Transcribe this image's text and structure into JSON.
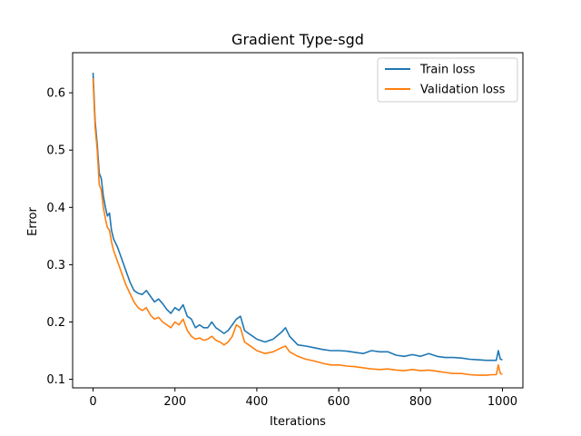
{
  "chart_data": {
    "type": "line",
    "title": "Gradient Type-sgd",
    "xlabel": "Iterations",
    "ylabel": "Error",
    "xlim": [
      -50,
      1050
    ],
    "ylim": [
      0.085,
      0.67
    ],
    "xticks": [
      0,
      200,
      400,
      600,
      800,
      1000
    ],
    "yticks": [
      0.1,
      0.2,
      0.3,
      0.4,
      0.5,
      0.6
    ],
    "grid": false,
    "legend_position": "top-right",
    "colors": {
      "train": "#1f77b4",
      "validation": "#ff7f0e"
    },
    "series": [
      {
        "name": "Train loss",
        "x": [
          0,
          5,
          10,
          15,
          20,
          25,
          30,
          35,
          40,
          45,
          50,
          60,
          70,
          80,
          90,
          100,
          110,
          120,
          130,
          140,
          150,
          160,
          170,
          180,
          190,
          200,
          210,
          220,
          230,
          240,
          250,
          260,
          270,
          280,
          290,
          300,
          310,
          320,
          330,
          340,
          350,
          360,
          370,
          380,
          390,
          400,
          420,
          440,
          460,
          470,
          480,
          500,
          520,
          540,
          560,
          580,
          600,
          620,
          640,
          660,
          680,
          700,
          720,
          740,
          760,
          780,
          800,
          820,
          840,
          860,
          880,
          900,
          920,
          940,
          960,
          975,
          985,
          990,
          995,
          1000
        ],
        "y": [
          0.635,
          0.55,
          0.51,
          0.46,
          0.45,
          0.42,
          0.4,
          0.385,
          0.39,
          0.36,
          0.345,
          0.33,
          0.31,
          0.29,
          0.27,
          0.255,
          0.25,
          0.248,
          0.255,
          0.245,
          0.235,
          0.24,
          0.232,
          0.222,
          0.215,
          0.225,
          0.22,
          0.23,
          0.21,
          0.205,
          0.19,
          0.195,
          0.19,
          0.19,
          0.2,
          0.19,
          0.185,
          0.18,
          0.185,
          0.195,
          0.205,
          0.21,
          0.185,
          0.18,
          0.175,
          0.17,
          0.165,
          0.17,
          0.182,
          0.19,
          0.175,
          0.16,
          0.158,
          0.155,
          0.152,
          0.15,
          0.15,
          0.149,
          0.147,
          0.145,
          0.15,
          0.148,
          0.148,
          0.142,
          0.14,
          0.143,
          0.14,
          0.145,
          0.14,
          0.138,
          0.138,
          0.137,
          0.135,
          0.134,
          0.133,
          0.133,
          0.133,
          0.15,
          0.135,
          0.134
        ]
      },
      {
        "name": "Validation loss",
        "x": [
          0,
          5,
          10,
          15,
          20,
          25,
          30,
          35,
          40,
          45,
          50,
          60,
          70,
          80,
          90,
          100,
          110,
          120,
          130,
          140,
          150,
          160,
          170,
          180,
          190,
          200,
          210,
          220,
          230,
          240,
          250,
          260,
          270,
          280,
          290,
          300,
          310,
          320,
          330,
          340,
          350,
          360,
          370,
          380,
          390,
          400,
          420,
          440,
          460,
          470,
          480,
          500,
          520,
          540,
          560,
          580,
          600,
          620,
          640,
          660,
          680,
          700,
          720,
          740,
          760,
          780,
          800,
          820,
          840,
          860,
          880,
          900,
          920,
          940,
          960,
          975,
          985,
          990,
          995,
          1000
        ],
        "y": [
          0.625,
          0.54,
          0.5,
          0.44,
          0.43,
          0.4,
          0.38,
          0.365,
          0.36,
          0.34,
          0.325,
          0.305,
          0.285,
          0.265,
          0.25,
          0.235,
          0.225,
          0.22,
          0.225,
          0.212,
          0.205,
          0.208,
          0.2,
          0.195,
          0.19,
          0.2,
          0.195,
          0.205,
          0.185,
          0.175,
          0.17,
          0.172,
          0.168,
          0.17,
          0.175,
          0.168,
          0.165,
          0.16,
          0.165,
          0.175,
          0.195,
          0.19,
          0.165,
          0.16,
          0.155,
          0.15,
          0.145,
          0.148,
          0.155,
          0.158,
          0.148,
          0.14,
          0.135,
          0.132,
          0.128,
          0.125,
          0.125,
          0.123,
          0.122,
          0.12,
          0.118,
          0.117,
          0.118,
          0.116,
          0.115,
          0.117,
          0.115,
          0.116,
          0.114,
          0.112,
          0.11,
          0.11,
          0.108,
          0.107,
          0.107,
          0.108,
          0.108,
          0.125,
          0.11,
          0.109
        ]
      }
    ]
  }
}
